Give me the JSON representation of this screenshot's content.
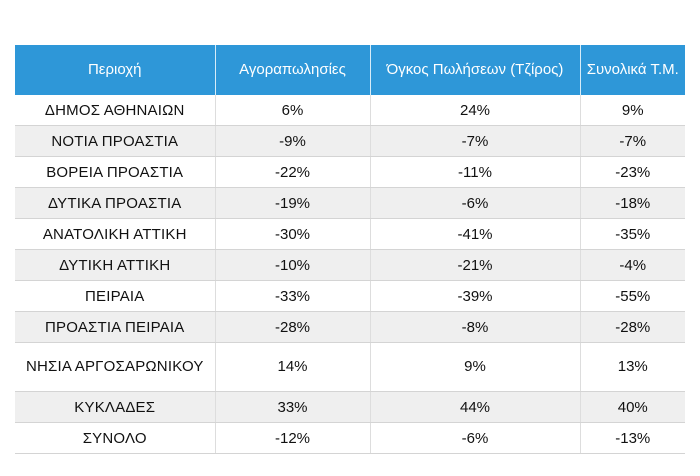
{
  "table": {
    "headers": [
      "Περιοχή",
      "Αγοραπωλησίες",
      "Όγκος Πωλήσεων (Τζίρος)",
      "Συνολικά Τ.Μ."
    ],
    "rows": [
      {
        "region": "ΔΗΜΟΣ ΑΘΗΝΑΙΩΝ",
        "transactions": "6%",
        "volume": "24%",
        "sqm": "9%"
      },
      {
        "region": "ΝΟΤΙΑ ΠΡΟΑΣΤΙΑ",
        "transactions": "-9%",
        "volume": "-7%",
        "sqm": "-7%"
      },
      {
        "region": "ΒΟΡΕΙΑ ΠΡΟΑΣΤΙΑ",
        "transactions": "-22%",
        "volume": "-11%",
        "sqm": "-23%"
      },
      {
        "region": "ΔΥΤΙΚΑ ΠΡΟΑΣΤΙΑ",
        "transactions": "-19%",
        "volume": "-6%",
        "sqm": "-18%"
      },
      {
        "region": "ΑΝΑΤΟΛΙΚΗ ΑΤΤΙΚΗ",
        "transactions": "-30%",
        "volume": "-41%",
        "sqm": "-35%"
      },
      {
        "region": "ΔΥΤΙΚΗ ΑΤΤΙΚΗ",
        "transactions": "-10%",
        "volume": "-21%",
        "sqm": "-4%"
      },
      {
        "region": "ΠΕΙΡΑΙΑ",
        "transactions": "-33%",
        "volume": "-39%",
        "sqm": "-55%"
      },
      {
        "region": "ΠΡΟΑΣΤΙΑ ΠΕΙΡΑΙΑ",
        "transactions": "-28%",
        "volume": "-8%",
        "sqm": "-28%"
      },
      {
        "region": "ΝΗΣΙΑ ΑΡΓΟΣΑΡΩΝΙΚΟΥ",
        "transactions": "14%",
        "volume": "9%",
        "sqm": "13%"
      },
      {
        "region": "ΚΥΚΛΑΔΕΣ",
        "transactions": "33%",
        "volume": "44%",
        "sqm": "40%"
      },
      {
        "region": "ΣΥΝΟΛΟ",
        "transactions": "-12%",
        "volume": "-6%",
        "sqm": "-13%"
      }
    ]
  },
  "colors": {
    "header_bg": "#2e97d8",
    "header_text": "#ffffff",
    "row_shade": "#efefef"
  }
}
